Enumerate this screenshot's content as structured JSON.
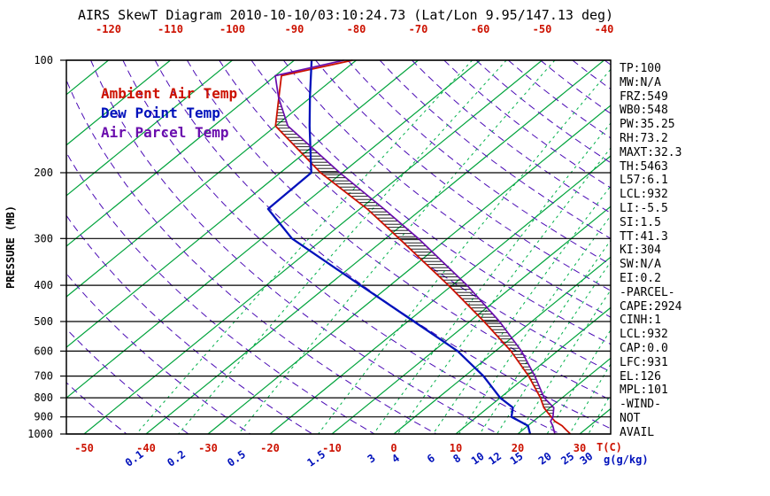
{
  "title": "AIRS SkewT Diagram 2010-10-10/03:10:24.73 (Lat/Lon 9.95/147.13 deg)",
  "legend": [
    {
      "label": "Ambient Air Temp",
      "color": "#cc1100"
    },
    {
      "label": "Dew Point Temp",
      "color": "#0011bb"
    },
    {
      "label": "Air Parcel Temp",
      "color": "#6a0dad"
    }
  ],
  "axes": {
    "pressure_axis_title": "PRESSURE (MB)",
    "pressure_ticks": [
      100,
      200,
      300,
      400,
      500,
      600,
      700,
      800,
      900,
      1000
    ],
    "top_temp_ticks_c": [
      -120,
      -110,
      -100,
      -90,
      -80,
      -70,
      -60,
      -50,
      -40
    ],
    "bottom_temp_ticks_c": [
      -50,
      -40,
      -30,
      -20,
      -10,
      0,
      10,
      20,
      30
    ],
    "mixing_ratio_ticks_gkg": [
      0.1,
      0.2,
      0.5,
      1.5,
      3,
      4,
      6,
      8,
      10,
      12,
      15,
      20,
      25,
      30
    ],
    "temp_unit_label": "T(C)",
    "mixing_unit_label": "g(g/kg)"
  },
  "stats": [
    "TP:100",
    "MW:N/A",
    "FRZ:549",
    "WB0:548",
    "PW:35.25",
    "RH:73.2",
    "MAXT:32.3",
    "TH:5463",
    "L57:6.1",
    "LCL:932",
    "LI:-5.5",
    "SI:1.5",
    "TT:41.3",
    "KI:304",
    "SW:N/A",
    "EI:0.2",
    "-PARCEL-",
    "CAPE:2924",
    "CINH:1",
    "LCL:932",
    "CAP:0.0",
    "LFC:931",
    "EL:126",
    "MPL:101",
    "-WIND-",
    "NOT",
    "AVAIL"
  ],
  "chart_data": {
    "type": "line",
    "title": "AIRS Skew-T / log-P thermodynamic diagram",
    "x_axis": {
      "label": "Temperature (C)",
      "skewed": true,
      "bottom_range": [
        -50,
        30
      ],
      "top_range": [
        -120,
        -40
      ]
    },
    "y_axis": {
      "label": "PRESSURE (MB)",
      "scale": "log",
      "range": [
        100,
        1000
      ]
    },
    "colors": {
      "isotherm": "#00a33c",
      "mixing_ratio": "#00b04a",
      "dry_adiabat": "#4b0bb5",
      "pressure_line": "#000000",
      "ambient": "#cc1100",
      "dew_point": "#0011bb",
      "parcel": "#6a0dad",
      "hatch": "#000000"
    },
    "background": {
      "isotherms_c": {
        "min": -120,
        "max": 30,
        "step": 10
      },
      "dry_adiabats_k": {
        "min": 220,
        "max": 460,
        "step": 10
      },
      "mixing_ratio_lines_gkg": [
        0.1,
        0.2,
        0.5,
        1.5,
        3,
        4,
        6,
        8,
        10,
        12,
        15,
        20,
        25,
        30
      ],
      "pressure_lines_mb": [
        100,
        200,
        300,
        400,
        500,
        600,
        700,
        800,
        900,
        1000
      ]
    },
    "series": [
      {
        "name": "Ambient Air Temp",
        "pressure_mb": [
          1000,
          975,
          950,
          925,
          900,
          850,
          800,
          700,
          600,
          500,
          400,
          300,
          250,
          200,
          150,
          125,
          110,
          100
        ],
        "temperature_c": [
          28.5,
          27,
          25.5,
          23.5,
          22,
          19,
          16.5,
          10.3,
          2.5,
          -7.7,
          -20.6,
          -37.8,
          -48.8,
          -63.5,
          -80,
          -85.3,
          -89,
          -80.6
        ]
      },
      {
        "name": "Dew Point Temp",
        "pressure_mb": [
          1000,
          950,
          900,
          850,
          800,
          700,
          600,
          500,
          400,
          300,
          250,
          200,
          150,
          125,
          100
        ],
        "temperature_c": [
          22,
          20,
          15.6,
          14,
          10,
          3,
          -6.1,
          -19,
          -34.8,
          -55.1,
          -64.8,
          -65,
          -74.5,
          -80.3,
          -87.2
        ]
      },
      {
        "name": "Air Parcel Temp",
        "pressure_mb": [
          1000,
          950,
          925,
          900,
          850,
          800,
          700,
          600,
          500,
          400,
          300,
          250,
          200,
          150,
          126,
          110,
          100
        ],
        "temperature_c": [
          26,
          24,
          22.8,
          22.3,
          20.6,
          17.1,
          11.3,
          4.2,
          -5.2,
          -17.6,
          -34.7,
          -46.1,
          -60.4,
          -78,
          -85.1,
          -90,
          -82
        ]
      }
    ],
    "cape_hatch_between": [
      "Air Parcel Temp",
      "Ambient Air Temp"
    ],
    "hatch_pressure_range_mb": [
      905,
      128
    ]
  }
}
